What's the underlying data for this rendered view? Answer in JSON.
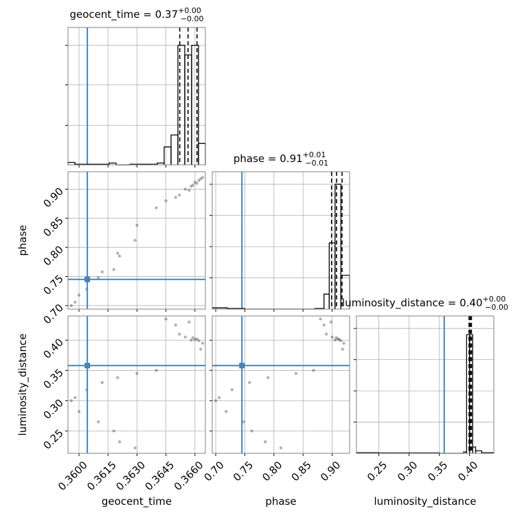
{
  "chart_data": {
    "type": "corner",
    "grid": true,
    "truth_color": "#4682b4",
    "hist_color": "#000000",
    "point_color": "#000000",
    "params": [
      {
        "name": "geocent_time",
        "title": {
          "text": "geocent_time = 0.37",
          "upper": "+0.00",
          "lower": "−0.00"
        },
        "lim": [
          0.35943,
          0.36654
        ],
        "ticks": [
          {
            "value": 0.36,
            "label": "0.3600"
          },
          {
            "value": 0.3615,
            "label": "0.3615"
          },
          {
            "value": 0.363,
            "label": "0.3630"
          },
          {
            "value": 0.3645,
            "label": "0.3645"
          },
          {
            "value": 0.366,
            "label": "0.3660"
          }
        ],
        "truth": 0.36043,
        "quantiles": [
          0.365214,
          0.365643,
          0.366107
        ],
        "hist": {
          "bins": [
            0.35943,
            0.359786,
            0.360141,
            0.360497,
            0.360852,
            0.361208,
            0.361563,
            0.361919,
            0.362274,
            0.36263,
            0.362985,
            0.363341,
            0.363696,
            0.364052,
            0.364407,
            0.364763,
            0.365118,
            0.365474,
            0.365829,
            0.366185,
            0.36654
          ],
          "counts": [
            0.02,
            0.005,
            0.005,
            0.005,
            0.005,
            0.005,
            0.015,
            0,
            0,
            0.005,
            0.005,
            0.005,
            0.005,
            0.015,
            0.15,
            0.25,
            1.0,
            0.92,
            1.0,
            0.18
          ],
          "ylim": [
            0,
            1.15
          ],
          "yticks": [
            0.33,
            0.67,
            1.0
          ]
        },
        "samples": [
          0.3596,
          0.3598,
          0.36,
          0.3604,
          0.361,
          0.3612,
          0.3618,
          0.362,
          0.3621,
          0.3629,
          0.363,
          0.364,
          0.3645,
          0.365,
          0.3652,
          0.3655,
          0.3657,
          0.3658,
          0.3659,
          0.366,
          0.3661,
          0.3662,
          0.3663,
          0.3664
        ]
      },
      {
        "name": "phase",
        "title": {
          "text": "phase = 0.91",
          "upper": "+0.01",
          "lower": "−0.01"
        },
        "lim": [
          0.694,
          0.93
        ],
        "ticks": [
          {
            "value": 0.7,
            "label": "0.70"
          },
          0.75,
          {
            "value": 0.8,
            "label": "0.80"
          },
          0.85,
          {
            "value": 0.9,
            "label": "0.90"
          }
        ],
        "truth": 0.745,
        "quantiles": [
          0.899,
          0.9075,
          0.917
        ],
        "hist": {
          "bins": [
            0.694,
            0.72,
            0.75,
            0.78,
            0.81,
            0.84,
            0.87,
            0.886,
            0.895,
            0.905,
            0.915,
            0.93
          ],
          "counts": [
            0.01,
            0.005,
            0,
            0,
            0,
            0,
            0.005,
            0.12,
            0.53,
            1.0,
            0.27
          ],
          "ylim": [
            0,
            1.1
          ],
          "yticks": [
            0.25,
            0.5,
            0.75,
            1.0
          ]
        },
        "samples": [
          0.7,
          0.706,
          0.718,
          0.728,
          0.748,
          0.758,
          0.762,
          0.79,
          0.785,
          0.812,
          0.838,
          0.868,
          0.88,
          0.886,
          0.89,
          0.9,
          0.898,
          0.905,
          0.907,
          0.912,
          0.91,
          0.915,
          0.918,
          0.92
        ]
      },
      {
        "name": "luminosity_distance",
        "title": {
          "text": "luminosity_distance = 0.40",
          "upper": "+0.00",
          "lower": "−0.00"
        },
        "lim": [
          0.213,
          0.44
        ],
        "ticks": [
          0.25,
          {
            "value": 0.3,
            "label": "0.30"
          },
          0.35,
          {
            "value": 0.4,
            "label": "0.40"
          }
        ],
        "truth": 0.358,
        "quantiles": [
          0.399,
          0.401,
          0.403
        ],
        "hist": {
          "bins": [
            0.213,
            0.25,
            0.3,
            0.35,
            0.39,
            0.395,
            0.4,
            0.405,
            0.41,
            0.42,
            0.44
          ],
          "counts": [
            0.005,
            0.003,
            0.003,
            0,
            0.01,
            0.95,
            0.95,
            0.05,
            0.02,
            0.005
          ],
          "ylim": [
            0,
            1.1
          ],
          "yticks": [
            0.25,
            0.5,
            0.75,
            1.0
          ]
        },
        "samples": [
          0.3,
          0.305,
          0.282,
          0.318,
          0.265,
          0.33,
          0.25,
          0.338,
          0.232,
          0.222,
          0.345,
          0.35,
          0.435,
          0.425,
          0.41,
          0.405,
          0.43,
          0.4,
          0.404,
          0.401,
          0.402,
          0.399,
          0.385,
          0.395
        ]
      }
    ]
  }
}
